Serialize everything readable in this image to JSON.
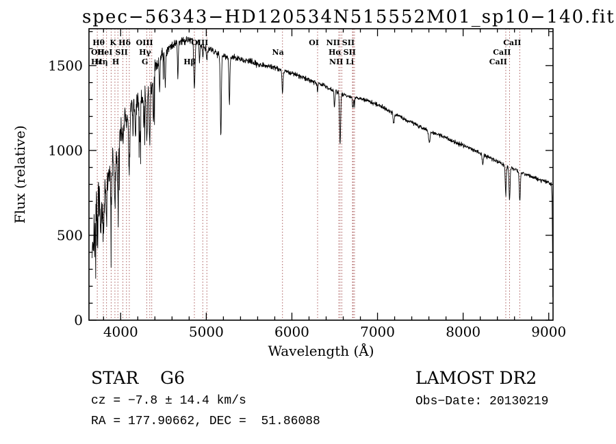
{
  "chart_data": {
    "type": "line",
    "title": "spec−56343−HD120534N515552M01_sp10−140.fits",
    "xlabel": "Wavelength (Å)",
    "ylabel": "Flux (relative)",
    "xlim": [
      3630,
      9050
    ],
    "ylim": [
      0,
      1717
    ],
    "x_ticks": [
      4000,
      5000,
      6000,
      7000,
      8000,
      9000
    ],
    "y_ticks": [
      0,
      500,
      1000,
      1500
    ],
    "x_minor_step": 200,
    "y_minor_step": 100,
    "grid": false,
    "legend": "none",
    "series_color": "#000000",
    "marker_color": "#9e4545",
    "marker_lines": [
      3727,
      3798,
      3835,
      3889,
      3933,
      3968,
      4026,
      4068,
      4101,
      4305,
      4340,
      4363,
      4861,
      4959,
      5007,
      5890,
      6300,
      6548,
      6563,
      6583,
      6708,
      6716,
      6731,
      8498,
      8542,
      8662
    ],
    "line_labels": [
      {
        "text": "Hθ",
        "wl": 3798,
        "row": 1
      },
      {
        "text": "K",
        "wl": 3933,
        "row": 1
      },
      {
        "text": "Hδ",
        "wl": 4101,
        "row": 1
      },
      {
        "text": "OIII",
        "wl": 4363,
        "row": 1
      },
      {
        "text": "OIII",
        "wl": 5007,
        "row": 1
      },
      {
        "text": "OI",
        "wl": 6300,
        "row": 1
      },
      {
        "text": "NII",
        "wl": 6548,
        "row": 1
      },
      {
        "text": "SII",
        "wl": 6716,
        "row": 1
      },
      {
        "text": "CaII",
        "wl": 8662,
        "row": 1
      },
      {
        "text": "OII",
        "wl": 3727,
        "row": 2
      },
      {
        "text": "HeI",
        "wl": 3889,
        "row": 2
      },
      {
        "text": "SII",
        "wl": 4068,
        "row": 2
      },
      {
        "text": "Hγ",
        "wl": 4340,
        "row": 2
      },
      {
        "text": "Na",
        "wl": 5890,
        "row": 2
      },
      {
        "text": "Hα",
        "wl": 6563,
        "row": 2
      },
      {
        "text": "SII",
        "wl": 6731,
        "row": 2
      },
      {
        "text": "CaII",
        "wl": 8542,
        "row": 2
      },
      {
        "text": "Hε",
        "wl": 3712,
        "row": 3
      },
      {
        "text": "Hη",
        "wl": 3835,
        "row": 3
      },
      {
        "text": "H",
        "wl": 3968,
        "row": 3
      },
      {
        "text": "G",
        "wl": 4305,
        "row": 3
      },
      {
        "text": "Hβ",
        "wl": 4861,
        "row": 3
      },
      {
        "text": "NII",
        "wl": 6583,
        "row": 3
      },
      {
        "text": "Li",
        "wl": 6708,
        "row": 3
      },
      {
        "text": "CaII",
        "wl": 8498,
        "row": 3
      }
    ],
    "continuum": [
      [
        3660,
        420
      ],
      [
        3710,
        560
      ],
      [
        3725,
        620
      ],
      [
        3740,
        680
      ],
      [
        3760,
        640
      ],
      [
        3780,
        620
      ],
      [
        3800,
        640
      ],
      [
        3815,
        720
      ],
      [
        3830,
        760
      ],
      [
        3850,
        830
      ],
      [
        3870,
        870
      ],
      [
        3900,
        920
      ],
      [
        3920,
        960
      ],
      [
        3945,
        1010
      ],
      [
        3960,
        1000
      ],
      [
        3980,
        1060
      ],
      [
        4000,
        1120
      ],
      [
        4030,
        1170
      ],
      [
        4060,
        1200
      ],
      [
        4090,
        1220
      ],
      [
        4130,
        1260
      ],
      [
        4160,
        1270
      ],
      [
        4200,
        1290
      ],
      [
        4250,
        1310
      ],
      [
        4300,
        1340
      ],
      [
        4360,
        1420
      ],
      [
        4420,
        1500
      ],
      [
        4470,
        1555
      ],
      [
        4520,
        1585
      ],
      [
        4570,
        1610
      ],
      [
        4620,
        1625
      ],
      [
        4680,
        1640
      ],
      [
        4740,
        1650
      ],
      [
        4800,
        1655
      ],
      [
        4850,
        1650
      ],
      [
        4900,
        1635
      ],
      [
        4950,
        1620
      ],
      [
        5000,
        1605
      ],
      [
        5060,
        1590
      ],
      [
        5120,
        1575
      ],
      [
        5180,
        1565
      ],
      [
        5240,
        1555
      ],
      [
        5300,
        1550
      ],
      [
        5400,
        1535
      ],
      [
        5500,
        1525
      ],
      [
        5600,
        1510
      ],
      [
        5700,
        1500
      ],
      [
        5800,
        1490
      ],
      [
        5900,
        1470
      ],
      [
        6000,
        1455
      ],
      [
        6100,
        1435
      ],
      [
        6200,
        1415
      ],
      [
        6300,
        1400
      ],
      [
        6400,
        1375
      ],
      [
        6500,
        1350
      ],
      [
        6600,
        1330
      ],
      [
        6700,
        1315
      ],
      [
        6800,
        1305
      ],
      [
        6900,
        1290
      ],
      [
        7000,
        1270
      ],
      [
        7100,
        1245
      ],
      [
        7200,
        1215
      ],
      [
        7300,
        1190
      ],
      [
        7400,
        1165
      ],
      [
        7500,
        1140
      ],
      [
        7600,
        1115
      ],
      [
        7700,
        1095
      ],
      [
        7800,
        1075
      ],
      [
        7900,
        1050
      ],
      [
        8000,
        1030
      ],
      [
        8100,
        1010
      ],
      [
        8200,
        985
      ],
      [
        8300,
        960
      ],
      [
        8400,
        935
      ],
      [
        8500,
        910
      ],
      [
        8600,
        890
      ],
      [
        8700,
        865
      ],
      [
        8800,
        845
      ],
      [
        8900,
        825
      ],
      [
        9000,
        812
      ],
      [
        9030,
        805
      ],
      [
        9040,
        700
      ],
      [
        9048,
        130
      ]
    ],
    "absorption_lines": [
      [
        3727,
        120,
        6
      ],
      [
        3798,
        180,
        7
      ],
      [
        3835,
        220,
        7
      ],
      [
        3889,
        240,
        8
      ],
      [
        3933,
        320,
        9
      ],
      [
        3968,
        320,
        9
      ],
      [
        4026,
        140,
        7
      ],
      [
        4068,
        100,
        6
      ],
      [
        4101,
        330,
        10
      ],
      [
        4144,
        150,
        6
      ],
      [
        4172,
        220,
        6
      ],
      [
        4226,
        300,
        7
      ],
      [
        4271,
        180,
        6
      ],
      [
        4305,
        280,
        10
      ],
      [
        4340,
        330,
        10
      ],
      [
        4363,
        90,
        6
      ],
      [
        4383,
        280,
        7
      ],
      [
        4455,
        200,
        6
      ],
      [
        4520,
        220,
        7
      ],
      [
        4668,
        200,
        7
      ],
      [
        4861,
        290,
        10
      ],
      [
        4921,
        120,
        6
      ],
      [
        4959,
        70,
        6
      ],
      [
        5007,
        80,
        6
      ],
      [
        5170,
        480,
        9
      ],
      [
        5270,
        280,
        8
      ],
      [
        5890,
        140,
        8
      ],
      [
        6300,
        60,
        6
      ],
      [
        6497,
        100,
        7
      ],
      [
        6563,
        300,
        9
      ],
      [
        6708,
        40,
        5
      ],
      [
        6716,
        60,
        5
      ],
      [
        6731,
        60,
        5
      ],
      [
        7190,
        60,
        10
      ],
      [
        7605,
        70,
        12
      ],
      [
        8230,
        60,
        10
      ],
      [
        8498,
        170,
        8
      ],
      [
        8542,
        200,
        9
      ],
      [
        8662,
        180,
        9
      ]
    ],
    "noise_profile": [
      [
        3660,
        160
      ],
      [
        3760,
        140
      ],
      [
        3850,
        100
      ],
      [
        3950,
        80
      ],
      [
        4100,
        62
      ],
      [
        4300,
        52
      ],
      [
        4450,
        42
      ],
      [
        4650,
        28
      ],
      [
        4850,
        24
      ],
      [
        5200,
        20
      ],
      [
        5600,
        17
      ],
      [
        6000,
        15
      ],
      [
        6500,
        13
      ],
      [
        7000,
        12
      ],
      [
        7600,
        12
      ],
      [
        8200,
        12
      ],
      [
        8700,
        14
      ],
      [
        9000,
        12
      ]
    ]
  },
  "annotations": {
    "object_type": "STAR    G6",
    "survey": "LAMOST DR2",
    "cz": "cz = −7.8 ± 14.4 km/s",
    "obs_date": "Obs−Date: 20130219",
    "coords": "RA = 177.90662, DEC =  51.86088"
  }
}
